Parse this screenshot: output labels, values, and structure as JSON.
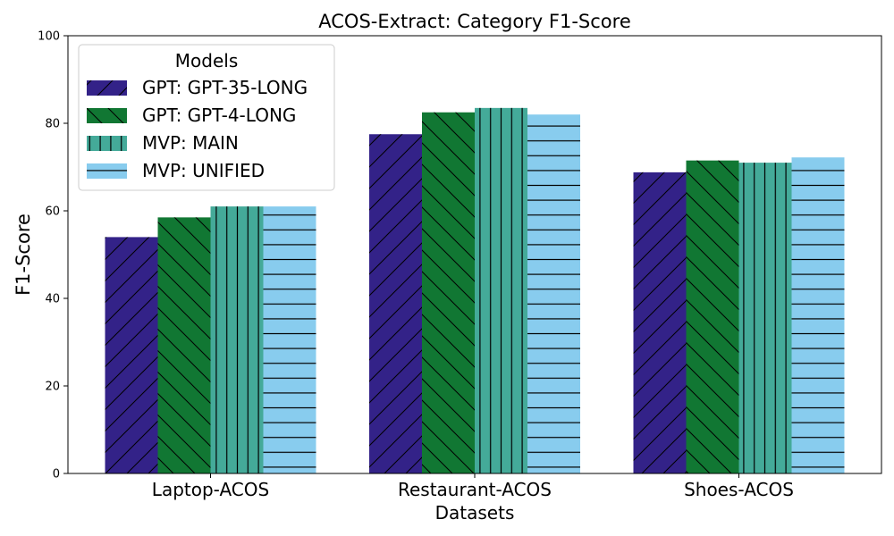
{
  "chart_data": {
    "type": "bar",
    "title": "ACOS-Extract: Category F1-Score",
    "xlabel": "Datasets",
    "ylabel": "F1-Score",
    "ylim": [
      0,
      100
    ],
    "yticks": [
      "0",
      "20",
      "40",
      "60",
      "80",
      "100"
    ],
    "categories": [
      "Laptop-ACOS",
      "Restaurant-ACOS",
      "Shoes-ACOS"
    ],
    "legend": {
      "title": "Models",
      "position": "top-left"
    },
    "series": [
      {
        "name": "GPT: GPT-35-LONG",
        "color": "#332288",
        "hatch": "diagonal-up",
        "values": [
          54.0,
          77.5,
          68.8
        ]
      },
      {
        "name": "GPT: GPT-4-LONG",
        "color": "#117733",
        "hatch": "diagonal-down",
        "values": [
          58.5,
          82.5,
          71.5
        ]
      },
      {
        "name": "MVP: MAIN",
        "color": "#44AA99",
        "hatch": "vertical",
        "values": [
          61.0,
          83.5,
          71.0
        ]
      },
      {
        "name": "MVP: UNIFIED",
        "color": "#88CCEE",
        "hatch": "horizontal",
        "values": [
          61.0,
          82.0,
          72.2
        ]
      }
    ]
  }
}
